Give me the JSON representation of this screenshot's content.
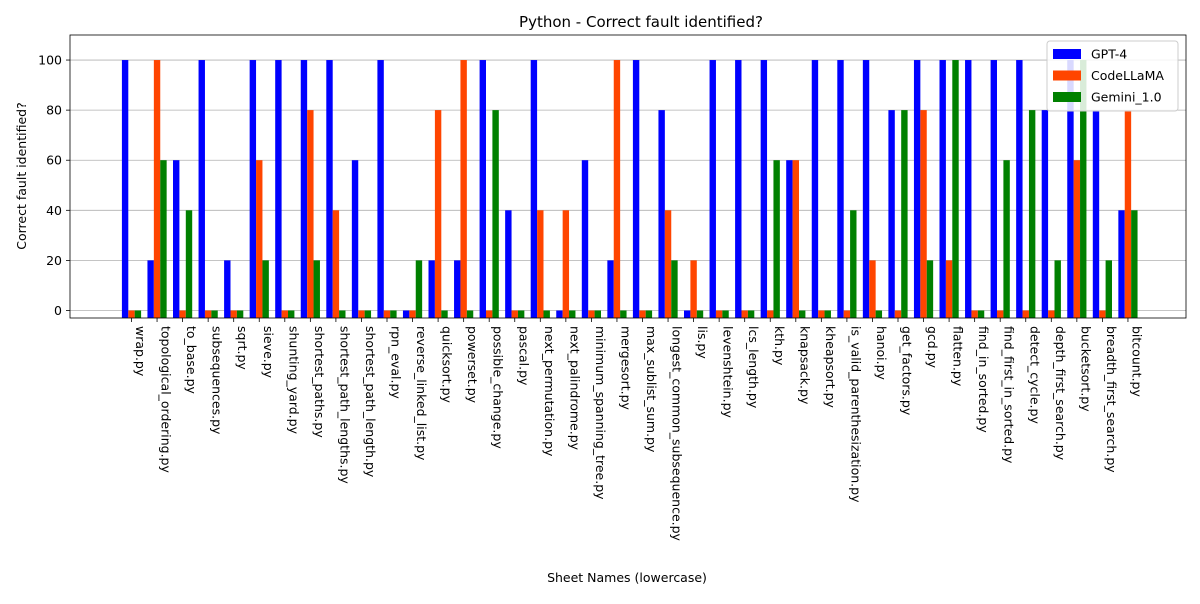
{
  "chart_data": {
    "type": "bar",
    "title": "Python - Correct fault identified?",
    "xlabel": "Sheet Names (lowercase)",
    "ylabel": "Correct fault identified?",
    "ylim": [
      -3,
      110
    ],
    "yticks": [
      0,
      20,
      40,
      60,
      80,
      100
    ],
    "grid": "y",
    "legend_position": "top-right",
    "categories": [
      "wrap.py",
      "topological_ordering.py",
      "to_base.py",
      "subsequences.py",
      "sqrt.py",
      "sieve.py",
      "shunting_yard.py",
      "shortest_paths.py",
      "shortest_path_lengths.py",
      "shortest_path_length.py",
      "rpn_eval.py",
      "reverse_linked_list.py",
      "quicksort.py",
      "powerset.py",
      "possible_change.py",
      "pascal.py",
      "next_permutation.py",
      "next_palindrome.py",
      "minimum_spanning_tree.py",
      "mergesort.py",
      "max_sublist_sum.py",
      "longest_common_subsequence.py",
      "lis.py",
      "levenshtein.py",
      "lcs_length.py",
      "kth.py",
      "knapsack.py",
      "kheapsort.py",
      "is_valid_parenthesization.py",
      "hanoi.py",
      "get_factors.py",
      "gcd.py",
      "flatten.py",
      "find_in_sorted.py",
      "find_first_in_sorted.py",
      "detect_cycle.py",
      "depth_first_search.py",
      "bucketsort.py",
      "breadth_first_search.py",
      "bitcount.py"
    ],
    "series": [
      {
        "name": "GPT-4",
        "color": "#0000ff",
        "values": [
          100,
          20,
          60,
          100,
          20,
          100,
          100,
          100,
          100,
          60,
          100,
          0,
          20,
          20,
          100,
          40,
          100,
          0,
          60,
          20,
          100,
          80,
          0,
          100,
          100,
          100,
          60,
          100,
          100,
          100,
          80,
          100,
          100,
          100,
          100,
          100,
          80,
          100,
          80,
          40
        ]
      },
      {
        "name": "CodeLLaMA",
        "color": "#ff4500",
        "values": [
          0,
          100,
          0,
          0,
          0,
          60,
          0,
          80,
          40,
          0,
          0,
          0,
          80,
          100,
          0,
          0,
          40,
          40,
          0,
          100,
          0,
          40,
          20,
          0,
          0,
          0,
          60,
          0,
          0,
          20,
          0,
          80,
          20,
          0,
          0,
          0,
          0,
          60,
          0,
          80
        ]
      },
      {
        "name": "Gemini_1.0",
        "color": "#008000",
        "values": [
          0,
          60,
          40,
          0,
          0,
          20,
          0,
          20,
          0,
          0,
          0,
          20,
          0,
          0,
          80,
          0,
          0,
          0,
          0,
          0,
          0,
          20,
          0,
          0,
          0,
          60,
          0,
          0,
          40,
          0,
          80,
          20,
          100,
          0,
          60,
          80,
          20,
          100,
          20,
          40
        ]
      }
    ]
  }
}
